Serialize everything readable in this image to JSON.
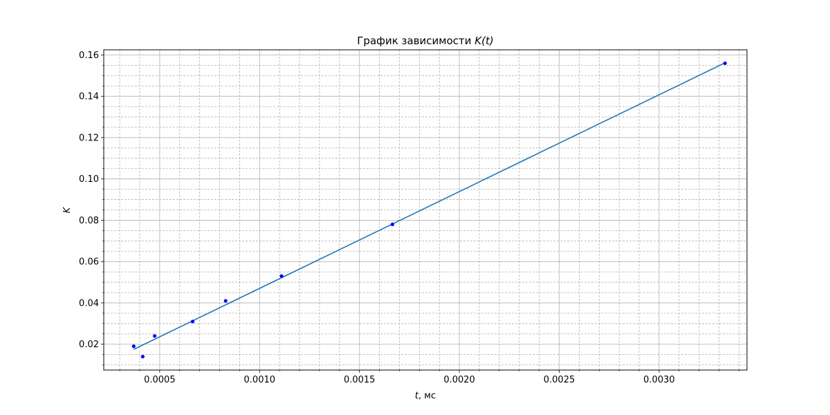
{
  "chart_data": {
    "type": "scatter",
    "title": "График зависимости ",
    "title_math": "K(t)",
    "xlabel_var": "t",
    "xlabel_unit": ", мс",
    "ylabel": "K",
    "xlim": [
      0.00022,
      0.00344
    ],
    "ylim": [
      0.0075,
      0.1625
    ],
    "x_major_ticks": [
      0.0005,
      0.001,
      0.0015,
      0.002,
      0.0025,
      0.003
    ],
    "x_tick_labels": [
      "0.0005",
      "0.0010",
      "0.0015",
      "0.0020",
      "0.0025",
      "0.0030"
    ],
    "x_minor_step": 0.0001,
    "y_major_ticks": [
      0.02,
      0.04,
      0.06,
      0.08,
      0.1,
      0.12,
      0.14,
      0.16
    ],
    "y_tick_labels": [
      "0.02",
      "0.04",
      "0.06",
      "0.08",
      "0.10",
      "0.12",
      "0.14",
      "0.16"
    ],
    "y_minor_step": 0.005,
    "grid": {
      "major": "solid",
      "minor": "dashed"
    },
    "series": [
      {
        "kind": "points",
        "color": "#0000ff",
        "x": [
          0.00037,
          0.000415,
          0.000475,
          0.000665,
          0.00083,
          0.00111,
          0.001665,
          0.00333
        ],
        "y": [
          0.019,
          0.014,
          0.024,
          0.031,
          0.041,
          0.053,
          0.078,
          0.156
        ]
      },
      {
        "kind": "fit-line",
        "color": "#1f77b4",
        "x": [
          0.00037,
          0.00333
        ],
        "y": [
          0.0175,
          0.1562
        ]
      }
    ]
  }
}
